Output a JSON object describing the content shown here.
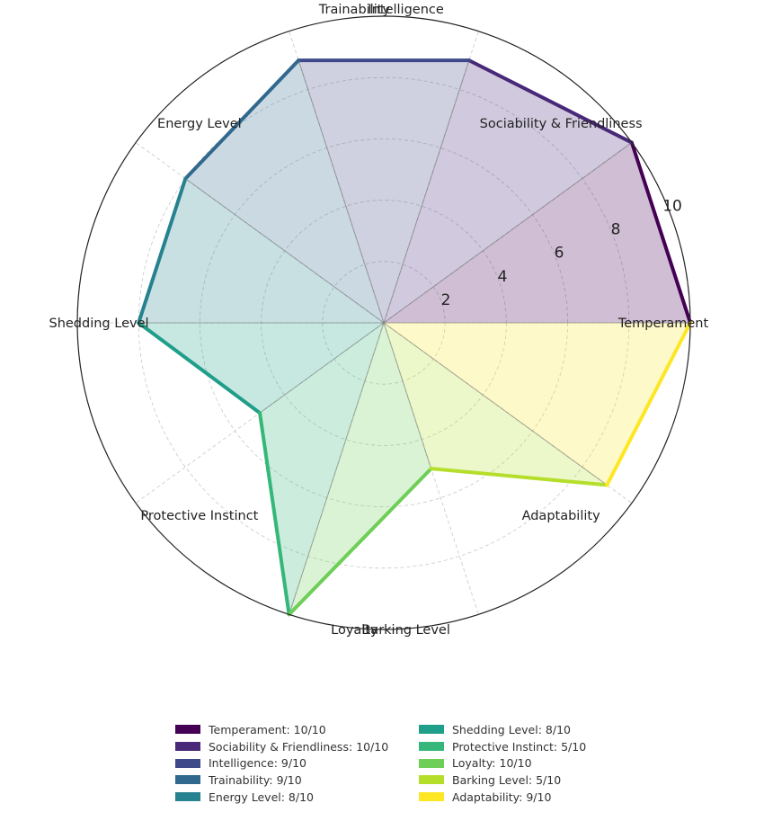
{
  "chart_data": {
    "type": "radar",
    "max_value": 10,
    "rlim": [
      0,
      10
    ],
    "radial_ticks": [
      "2",
      "4",
      "6",
      "8",
      "10"
    ],
    "grid": true,
    "legend_position": "bottom",
    "categories": [
      {
        "axis_label": "Temperament",
        "value": 10,
        "color": "#440154",
        "legend": "Temperament: 10/10"
      },
      {
        "axis_label": "Sociability & Friendliness",
        "value": 10,
        "color": "#482878",
        "legend": "Sociability & Friendliness: 10/10"
      },
      {
        "axis_label": "Intelligence",
        "value": 9,
        "color": "#3e4989",
        "legend": "Intelligence: 9/10"
      },
      {
        "axis_label": "Trainability",
        "value": 9,
        "color": "#31688e",
        "legend": "Trainability: 9/10"
      },
      {
        "axis_label": "Energy Level",
        "value": 8,
        "color": "#26828e",
        "legend": "Energy Level: 8/10"
      },
      {
        "axis_label": "Shedding Level",
        "value": 8,
        "color": "#1f9e89",
        "legend": "Shedding Level: 8/10"
      },
      {
        "axis_label": "Protective Instinct",
        "value": 5,
        "color": "#35b779",
        "legend": "Protective Instinct: 5/10"
      },
      {
        "axis_label": "Loyalty",
        "value": 10,
        "color": "#6ece58",
        "legend": "Loyalty: 10/10"
      },
      {
        "axis_label": "Barking Level",
        "value": 5,
        "color": "#b5de2b",
        "legend": "Barking Level: 5/10"
      },
      {
        "axis_label": "Adaptability",
        "value": 9,
        "color": "#fde725",
        "legend": "Adaptability: 9/10"
      }
    ]
  }
}
